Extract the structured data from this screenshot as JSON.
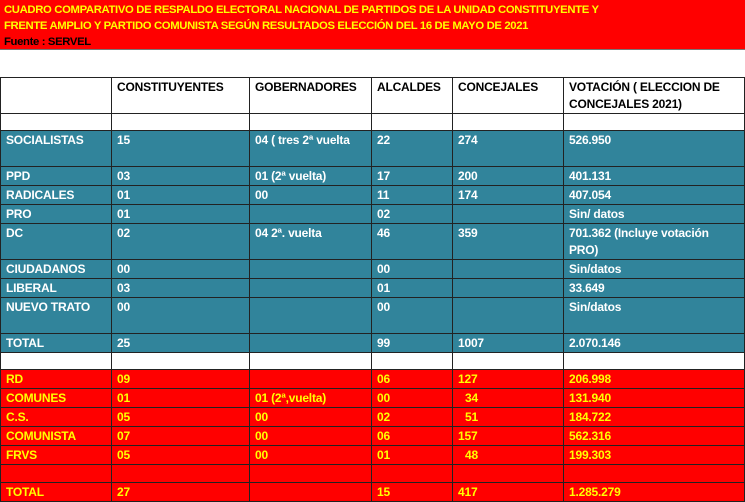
{
  "header": {
    "title_line1": "CUADRO COMPARATIVO DE RESPALDO ELECTORAL NACIONAL   DE  PARTIDOS DE LA UNIDAD CONSTITUYENTE Y",
    "title_line2": "FRENTE AMPLIO Y PARTIDO COMUNISTA SEGÚN RESULTADOS ELECCIÓN DEL 16 DE MAYO DE 2021",
    "source": "Fuente : SERVEL"
  },
  "colors": {
    "teal": "#31849b",
    "red": "#ff0000",
    "yellow": "#ffff00"
  },
  "table": {
    "columns": [
      "",
      "CONSTITUYENTES",
      "GOBERNADORES",
      "ALCALDES",
      "CONCEJALES",
      "VOTACIÓN  ( ELECCION DE  CONCEJALES 2021)"
    ],
    "unidad_constituyente": [
      [
        "SOCIALISTAS",
        "15",
        "04 ( tres 2ª vuelta",
        "22",
        "274",
        "526.950"
      ],
      [
        "PPD",
        "03",
        "01 (2ª vuelta)",
        "17",
        "200",
        "401.131"
      ],
      [
        "RADICALES",
        "01",
        "00",
        "11",
        "174",
        "407.054"
      ],
      [
        "PRO",
        "01",
        "",
        "02",
        "",
        "Sin/ datos"
      ],
      [
        "DC",
        "02",
        "04  2ª. vuelta",
        "46",
        "359",
        "701.362 (Incluye votación PRO)"
      ],
      [
        "CIUDADANOS",
        "00",
        "",
        "00",
        "",
        "Sin/datos"
      ],
      [
        "LIBERAL",
        "03",
        "",
        "01",
        "",
        "33.649"
      ],
      [
        "NUEVO TRATO",
        "00",
        "",
        "00",
        "",
        "Sin/datos"
      ],
      [
        "TOTAL",
        "25",
        "",
        "99",
        "1007",
        "2.070.146"
      ]
    ],
    "frente_amplio_pc": [
      [
        "RD",
        "09",
        "",
        "06",
        "127",
        "206.998"
      ],
      [
        "COMUNES",
        "01",
        "01 (2ª,vuelta)",
        "00",
        "34",
        "131.940"
      ],
      [
        "C.S.",
        "05",
        "00",
        "02",
        "51",
        "184.722"
      ],
      [
        "COMUNISTA",
        "07",
        "00",
        "06",
        "157",
        "562.316"
      ],
      [
        "FRVS",
        "05",
        "00",
        "01",
        "48",
        "199.303"
      ],
      [
        "",
        "",
        "",
        "",
        "",
        ""
      ],
      [
        "TOTAL",
        "27",
        "",
        "15",
        "417",
        "1.285.279"
      ]
    ]
  }
}
